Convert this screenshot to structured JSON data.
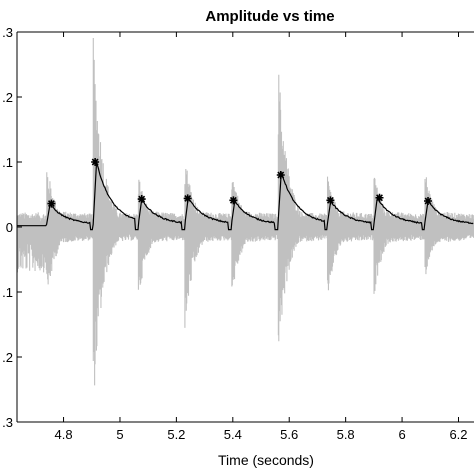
{
  "chart_data": {
    "type": "line",
    "title": "Amplitude vs time",
    "xlabel": "Time (seconds)",
    "ylabel": "",
    "xlim": [
      4.635,
      6.255
    ],
    "ylim": [
      -0.3,
      0.3
    ],
    "x_ticks": [
      4.8,
      5.0,
      5.2,
      5.4,
      5.6,
      5.8,
      6.0,
      6.2
    ],
    "x_tick_labels": [
      "4.8",
      "5",
      "5.2",
      "5.4",
      "5.6",
      "5.8",
      "6",
      "6.2"
    ],
    "y_ticks": [
      0.3,
      0.2,
      0.1,
      0.0,
      -0.1,
      -0.2,
      -0.3
    ],
    "y_tick_labels": [
      ".3",
      ".2",
      ".1",
      "0",
      ".1",
      ".2",
      ".3"
    ],
    "grid": false,
    "colors": {
      "waveform": "#c0c0c0",
      "envelope": "#000000",
      "markers": "#000000"
    },
    "onsets": [
      {
        "x": 4.74,
        "pos_peak": 0.1,
        "neg_peak": -0.12,
        "env_peak": 0.035,
        "marker_x": 4.757,
        "marker_y": 0.036
      },
      {
        "x": 4.905,
        "pos_peak": 0.295,
        "neg_peak": -0.285,
        "env_peak": 0.1,
        "marker_x": 4.912,
        "marker_y": 0.1
      },
      {
        "x": 5.065,
        "pos_peak": 0.085,
        "neg_peak": -0.115,
        "env_peak": 0.042,
        "marker_x": 5.077,
        "marker_y": 0.043
      },
      {
        "x": 5.23,
        "pos_peak": 0.115,
        "neg_peak": -0.165,
        "env_peak": 0.045,
        "marker_x": 5.24,
        "marker_y": 0.044
      },
      {
        "x": 5.395,
        "pos_peak": 0.095,
        "neg_peak": -0.115,
        "env_peak": 0.04,
        "marker_x": 5.402,
        "marker_y": 0.041
      },
      {
        "x": 5.56,
        "pos_peak": 0.265,
        "neg_peak": -0.21,
        "env_peak": 0.085,
        "marker_x": 5.57,
        "marker_y": 0.08
      },
      {
        "x": 5.735,
        "pos_peak": 0.085,
        "neg_peak": -0.115,
        "env_peak": 0.04,
        "marker_x": 5.746,
        "marker_y": 0.041
      },
      {
        "x": 5.9,
        "pos_peak": 0.09,
        "neg_peak": -0.11,
        "env_peak": 0.045,
        "marker_x": 5.92,
        "marker_y": 0.045
      },
      {
        "x": 6.08,
        "pos_peak": 0.095,
        "neg_peak": -0.085,
        "env_peak": 0.04,
        "marker_x": 6.092,
        "marker_y": 0.04
      }
    ]
  }
}
